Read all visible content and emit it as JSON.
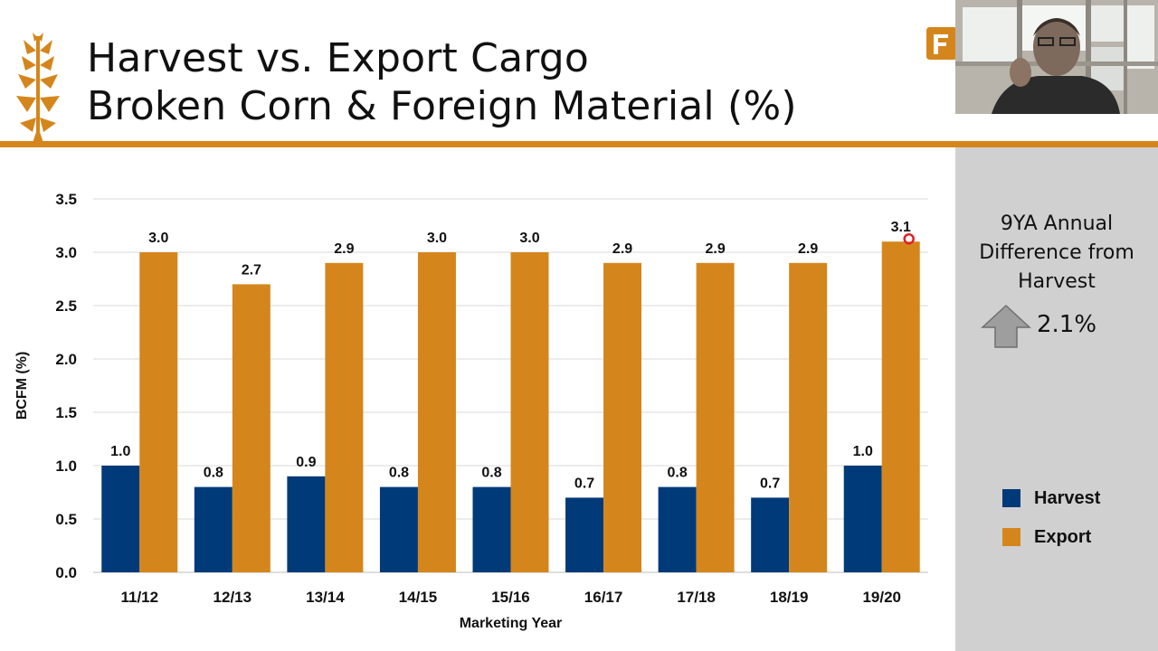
{
  "slide": {
    "title_line1": "Harvest vs. Export Cargo",
    "title_line2": "Broken Corn & Foreign Material (%)",
    "accent_color": "#d4861c",
    "harvest_color": "#003a78",
    "export_color": "#d4861c"
  },
  "side_panel": {
    "heading_line1": "9YA Annual",
    "heading_line2": "Difference from",
    "heading_line3": "Harvest",
    "arrow_icon": "up-arrow-icon",
    "value": "2.1%"
  },
  "legend": {
    "harvest_label": "Harvest",
    "export_label": "Export"
  },
  "chart_data": {
    "type": "bar",
    "xlabel": "Marketing Year",
    "ylabel": "BCFM (%)",
    "ylim": [
      0,
      3.5
    ],
    "yticks": [
      "0.0",
      "0.5",
      "1.0",
      "1.5",
      "2.0",
      "2.5",
      "3.0",
      "3.5"
    ],
    "grid": "horizontal",
    "legend_position": "right",
    "categories": [
      "11/12",
      "12/13",
      "13/14",
      "14/15",
      "15/16",
      "16/17",
      "17/18",
      "18/19",
      "19/20"
    ],
    "series": [
      {
        "name": "Harvest",
        "values": [
          1.0,
          0.8,
          0.9,
          0.8,
          0.8,
          0.7,
          0.8,
          0.7,
          1.0
        ],
        "labels": [
          "1.0",
          "0.8",
          "0.9",
          "0.8",
          "0.8",
          "0.7",
          "0.8",
          "0.7",
          "1.0"
        ]
      },
      {
        "name": "Export",
        "values": [
          3.0,
          2.7,
          2.9,
          3.0,
          3.0,
          2.9,
          2.9,
          2.9,
          3.1
        ],
        "labels": [
          "3.0",
          "2.7",
          "2.9",
          "3.0",
          "3.0",
          "2.9",
          "2.9",
          "2.9",
          "3.1"
        ]
      }
    ]
  }
}
